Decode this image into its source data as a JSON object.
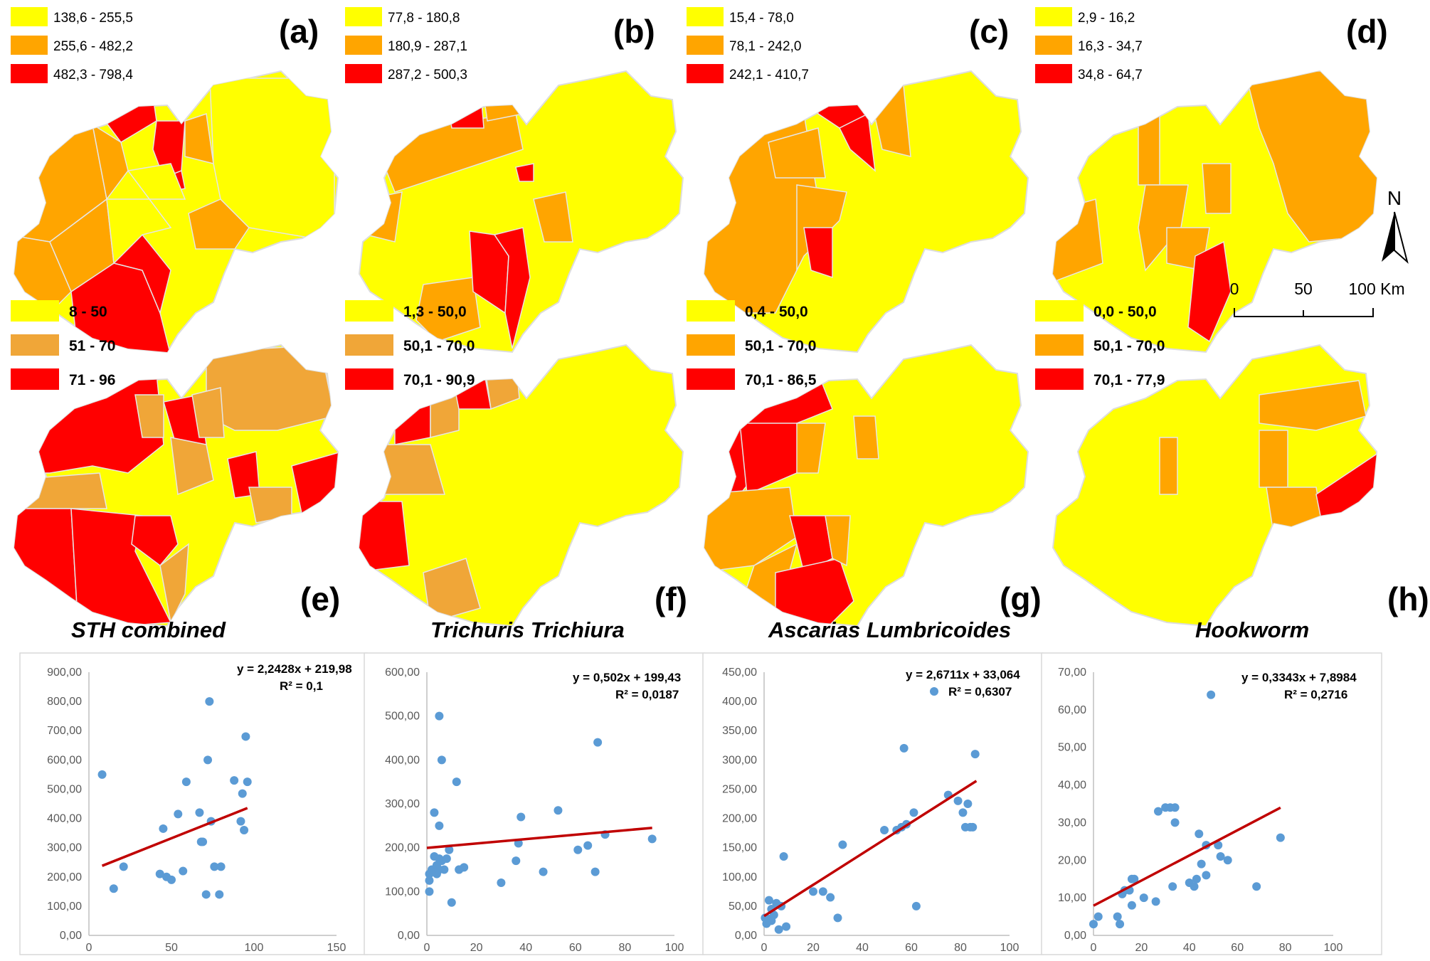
{
  "colors": {
    "low": "#ffff00",
    "mid": "#ffa500",
    "mid_alt": "#f0a638",
    "high": "#ff0000",
    "point": "#5b9bd5",
    "trend": "#c00000",
    "border": "#e6e6e6"
  },
  "top_maps": [
    {
      "label": "(a)",
      "legend": [
        "138,6 - 255,5",
        "255,6 - 482,2",
        "482,3 - 798,4"
      ]
    },
    {
      "label": "(b)",
      "legend": [
        "77,8 - 180,8",
        "180,9 - 287,1",
        "287,2 - 500,3"
      ]
    },
    {
      "label": "(c)",
      "legend": [
        "15,4 - 78,0",
        "78,1 - 242,0",
        "242,1 - 410,7"
      ]
    },
    {
      "label": "(d)",
      "legend": [
        "2,9 - 16,2",
        "16,3 - 34,7",
        "34,8 - 64,7"
      ]
    }
  ],
  "bottom_maps": [
    {
      "label": "(e)",
      "title": "STH combined",
      "legend": [
        "8 - 50",
        "51 - 70",
        "71 - 96"
      ]
    },
    {
      "label": "(f)",
      "title": "Trichuris Trichiura",
      "legend": [
        "1,3 - 50,0",
        "50,1 - 70,0",
        "70,1 - 90,9"
      ]
    },
    {
      "label": "(g)",
      "title": "Ascarias Lumbricoides",
      "legend": [
        "0,4 - 50,0",
        "50,1 - 70,0",
        "70,1 - 86,5"
      ]
    },
    {
      "label": "(h)",
      "title": "Hookworm",
      "legend": [
        "0,0 - 50,0",
        "50,1 - 70,0",
        "70,1 - 77,9"
      ]
    }
  ],
  "north_arrow": {
    "label": "N"
  },
  "scale_bar": {
    "labels": [
      "0",
      "50",
      "100 Km"
    ]
  },
  "chart_data": [
    {
      "type": "scatter",
      "equation": "y = 2,2428x + 219,98",
      "r2": "R² = 0,1",
      "xlim": [
        0,
        150
      ],
      "ylim": [
        0,
        900
      ],
      "xticks": [
        "0",
        "50",
        "100",
        "150"
      ],
      "yticks": [
        "0,00",
        "100,00",
        "200,00",
        "300,00",
        "400,00",
        "500,00",
        "600,00",
        "700,00",
        "800,00",
        "900,00"
      ],
      "slope": 2.2428,
      "intercept": 219.98,
      "trend_x": [
        8,
        96
      ],
      "x": [
        8,
        15,
        21,
        43,
        45,
        47,
        50,
        54,
        57,
        59,
        67,
        68,
        69,
        71,
        72,
        73,
        74,
        76,
        79,
        80,
        88,
        92,
        93,
        94,
        95,
        96
      ],
      "y": [
        550,
        160,
        235,
        210,
        365,
        200,
        190,
        415,
        220,
        525,
        420,
        320,
        320,
        140,
        600,
        800,
        390,
        235,
        140,
        235,
        530,
        390,
        485,
        360,
        680,
        525
      ]
    },
    {
      "type": "scatter",
      "equation": "y = 0,502x + 199,43",
      "r2": "R² = 0,0187",
      "xlim": [
        0,
        100
      ],
      "ylim": [
        0,
        600
      ],
      "xticks": [
        "0",
        "20",
        "40",
        "60",
        "80",
        "100"
      ],
      "yticks": [
        "0,00",
        "100,00",
        "200,00",
        "300,00",
        "400,00",
        "500,00",
        "600,00"
      ],
      "slope": 0.502,
      "intercept": 199.43,
      "trend_x": [
        0,
        91
      ],
      "x": [
        1,
        1,
        1,
        2,
        3,
        3,
        4,
        4,
        5,
        5,
        5,
        5,
        6,
        6,
        7,
        8,
        9,
        10,
        12,
        13,
        13,
        15,
        30,
        36,
        37,
        38,
        47,
        53,
        61,
        65,
        68,
        69,
        72,
        91
      ],
      "y": [
        100,
        125,
        140,
        150,
        180,
        280,
        140,
        160,
        150,
        250,
        500,
        175,
        170,
        400,
        150,
        175,
        195,
        75,
        350,
        150,
        150,
        155,
        120,
        170,
        210,
        270,
        145,
        285,
        195,
        205,
        145,
        440,
        230,
        220
      ]
    },
    {
      "type": "scatter",
      "equation": "y = 2,6711x + 33,064",
      "r2": "R² = 0,6307",
      "xlim": [
        0,
        100
      ],
      "ylim": [
        0,
        450
      ],
      "xticks": [
        "0",
        "20",
        "40",
        "60",
        "80",
        "100"
      ],
      "yticks": [
        "0,00",
        "50,00",
        "100,00",
        "150,00",
        "200,00",
        "250,00",
        "300,00",
        "350,00",
        "400,00",
        "450,00"
      ],
      "slope": 2.6711,
      "intercept": 33.064,
      "trend_x": [
        0,
        86.5
      ],
      "x": [
        0.4,
        1,
        2,
        2,
        3,
        3,
        4,
        5,
        6,
        7,
        8,
        9,
        20,
        24,
        27,
        30,
        32,
        49,
        54,
        56,
        57,
        58,
        61,
        62,
        75,
        79,
        81,
        82,
        83,
        84,
        85,
        86
      ],
      "y": [
        30,
        20,
        28,
        60,
        25,
        45,
        35,
        55,
        10,
        50,
        135,
        15,
        75,
        75,
        65,
        30,
        155,
        180,
        180,
        185,
        320,
        190,
        210,
        50,
        240,
        230,
        210,
        185,
        225,
        185,
        185,
        310
      ]
    },
    {
      "type": "scatter",
      "equation": "y = 0,3343x + 7,8984",
      "r2": "R² = 0,2716",
      "xlim": [
        0,
        100
      ],
      "ylim": [
        0,
        70
      ],
      "xticks": [
        "0",
        "20",
        "40",
        "60",
        "80",
        "100"
      ],
      "yticks": [
        "0,00",
        "10,00",
        "20,00",
        "30,00",
        "40,00",
        "50,00",
        "60,00",
        "70,00"
      ],
      "slope": 0.3343,
      "intercept": 7.8984,
      "trend_x": [
        0,
        78
      ],
      "x": [
        0,
        2,
        10,
        11,
        12,
        13,
        15,
        16,
        16,
        17,
        21,
        26,
        27,
        30,
        32,
        33,
        34,
        34,
        40,
        42,
        43,
        44,
        45,
        47,
        47,
        49,
        52,
        53,
        56,
        68,
        78
      ],
      "y": [
        3,
        5,
        5,
        3,
        11,
        12,
        12,
        8,
        15,
        15,
        10,
        9,
        33,
        34,
        34,
        13,
        34,
        30,
        14,
        13,
        15,
        27,
        19,
        24,
        16,
        64,
        24,
        21,
        20,
        13,
        26
      ]
    }
  ]
}
